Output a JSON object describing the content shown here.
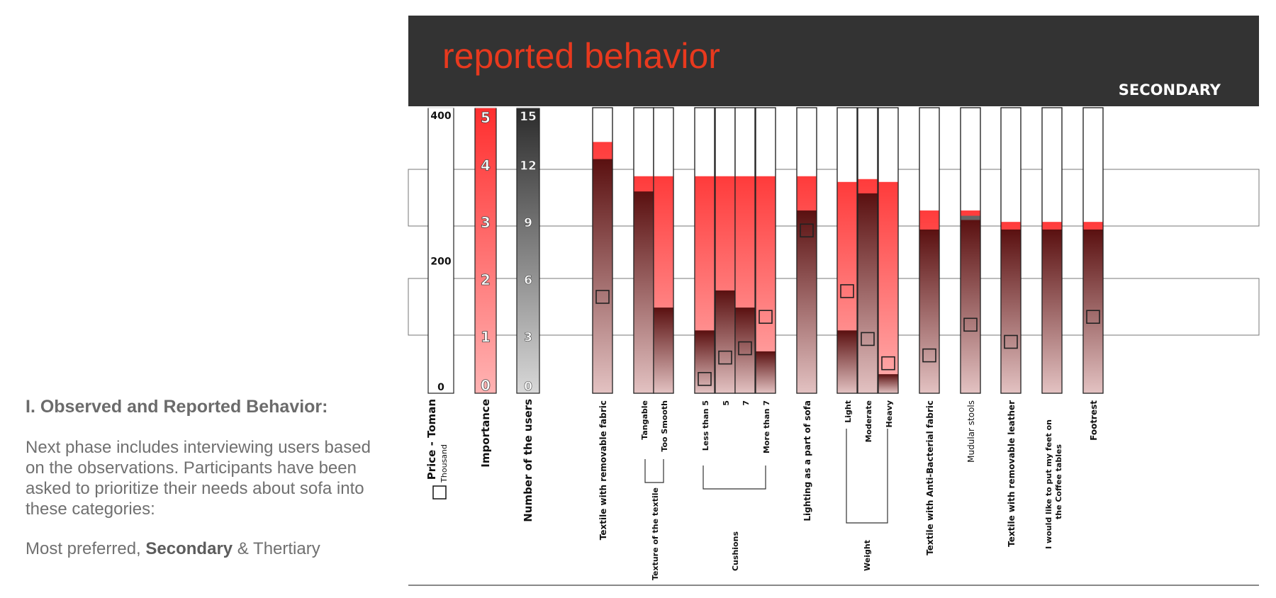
{
  "intro": {
    "heading": "I. Observed and Reported Behavior:",
    "paragraph": "Next phase includes interviewing users based on the observations. Participants have been asked to prioritize their needs about sofa into these categories:",
    "categories_prefix": "Most preferred, ",
    "categories_bold": "Secondary",
    "categories_suffix": " & Thertiary"
  },
  "header": {
    "title": "reported behavior",
    "section": "SECONDARY",
    "bg_color": "#333333",
    "title_color": "#e8391e"
  },
  "chart_data": {
    "type": "bar",
    "title": "reported behavior",
    "colors": {
      "importance": "#ff3333",
      "users": "#5a1414",
      "users_alt": "#555555",
      "marker": "#222222"
    },
    "scales": {
      "price": {
        "label": "Price - Toman",
        "unit": "Thousand",
        "ticks": [
          0,
          200,
          400
        ],
        "max": 400
      },
      "importance": {
        "label": "Importance",
        "ticks": [
          0,
          1,
          2,
          3,
          4,
          5
        ],
        "max": 5
      },
      "users": {
        "label": "Number of the users",
        "ticks": [
          0,
          3,
          6,
          9,
          12,
          15
        ],
        "max": 15
      }
    },
    "series_legend": [
      "Importance",
      "Number of the users",
      "Price - Toman"
    ],
    "bars": [
      {
        "label": "Textile with removable fabric",
        "bold": true,
        "importance": 4.4,
        "users": 12.3,
        "price": 135
      },
      {
        "label": "Tangable",
        "group": "Texture of the textile",
        "importance": 3.8,
        "users": 10.6,
        "price": null
      },
      {
        "label": "Too Smooth",
        "group": "Texture of the textile",
        "importance": 3.8,
        "users": 4.5,
        "price": null
      },
      {
        "label": "Less than 5",
        "group": "Cushions",
        "importance": 3.8,
        "users": 3.3,
        "price": 20
      },
      {
        "label": "5",
        "group": "Cushions",
        "importance": 3.8,
        "users": 5.4,
        "price": 50
      },
      {
        "label": "7",
        "group": "Cushions",
        "importance": 3.8,
        "users": 4.5,
        "price": 63
      },
      {
        "label": "More than 7",
        "group": "Cushions",
        "importance": 3.8,
        "users": 2.2,
        "price": 107
      },
      {
        "label": "Lighting as a part of sofa",
        "bold": true,
        "importance": 3.8,
        "users": 9.6,
        "price": 228
      },
      {
        "label": "Light",
        "group": "Weight",
        "importance": 3.7,
        "users": 3.3,
        "price": 143
      },
      {
        "label": "Moderate",
        "group": "Weight",
        "importance": 3.75,
        "users": 10.5,
        "price": 76
      },
      {
        "label": "Heavy",
        "group": "Weight",
        "importance": 3.7,
        "users": 1.0,
        "price": 42
      },
      {
        "label": "Textile with Anti-Bacterial fabric",
        "bold": true,
        "importance": 3.2,
        "users": 8.6,
        "price": 53
      },
      {
        "label": "Mudular stools",
        "bold": false,
        "importance": 3.2,
        "users": 9.1,
        "users_alt": true,
        "price": 96
      },
      {
        "label": "Textile with removable leather",
        "bold": true,
        "importance": 3.0,
        "users": 8.6,
        "price": 72
      },
      {
        "label": "I would like to put my feet on the Coffee tables",
        "line1": "I would like to put my feet on",
        "line2": "the Coffee tables",
        "bold": true,
        "importance": 3.0,
        "users": 8.6,
        "price": null
      },
      {
        "label": "Footrest",
        "bold": true,
        "importance": 3.0,
        "users": 8.6,
        "price": 107
      }
    ],
    "groups": [
      {
        "name": "Texture of the textile"
      },
      {
        "name": "Cushions"
      },
      {
        "name": "Weight"
      }
    ],
    "grid": true
  }
}
